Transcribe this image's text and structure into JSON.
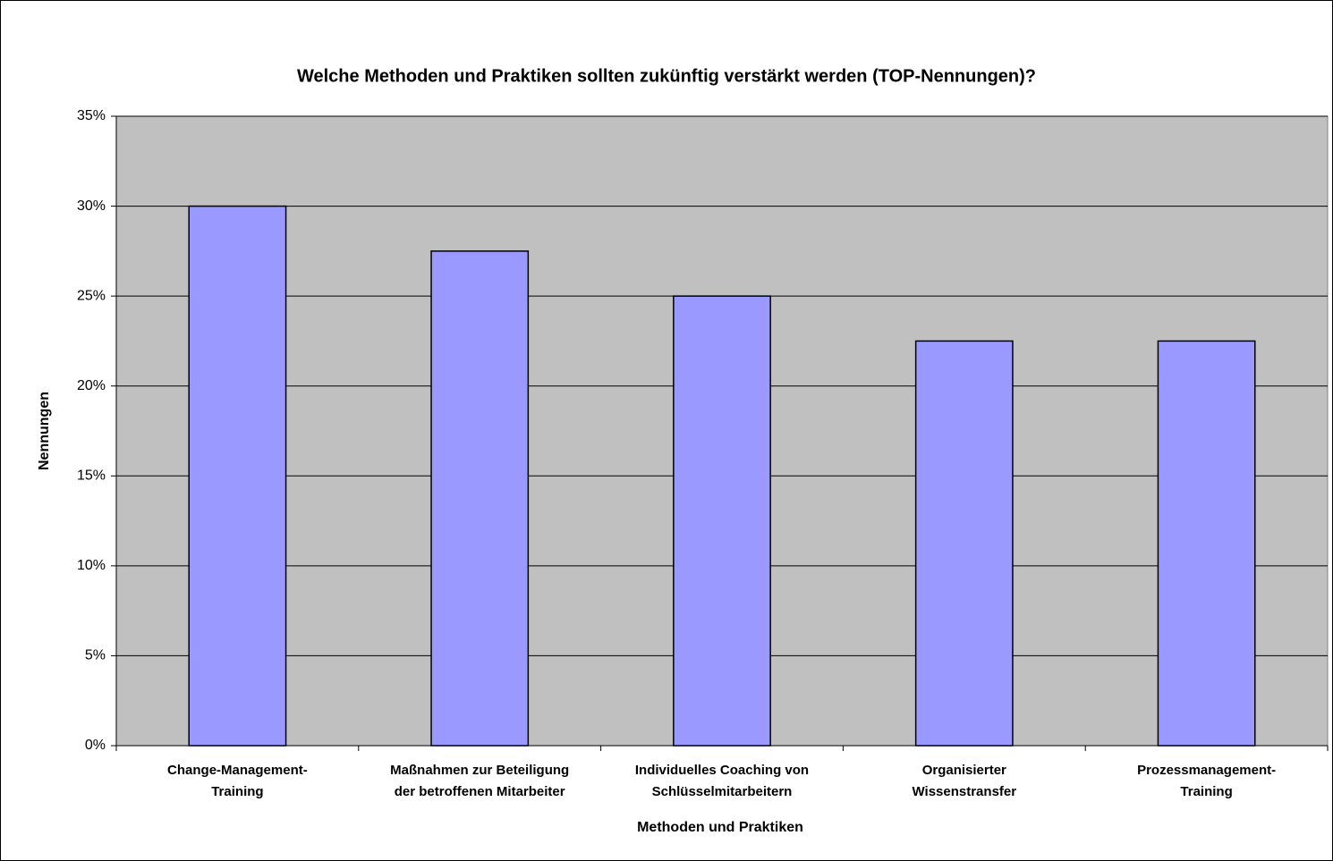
{
  "chart_data": {
    "type": "bar",
    "title": "Welche Methoden und Praktiken sollten zukünftig verstärkt werden (TOP-Nennungen)?",
    "x_label": "Methoden und Praktiken",
    "y_label": "Nennungen",
    "categories": [
      "Change-Management-\nTraining",
      "Maßnahmen zur Beteiligung\nder betroffenen Mitarbeiter",
      "Individuelles Coaching von\nSchlüsselmitarbeitern",
      "Organisierter\nWissenstransfer",
      "Prozessmanagement-\nTraining"
    ],
    "values": [
      30,
      27.5,
      25,
      22.5,
      22.5
    ],
    "color": "#9999ff",
    "ylim": [
      0,
      35
    ],
    "yticks": [
      {
        "value": 0,
        "label": "0%"
      },
      {
        "value": 5,
        "label": "5%"
      },
      {
        "value": 10,
        "label": "10%"
      },
      {
        "value": 15,
        "label": "15%"
      },
      {
        "value": 20,
        "label": "20%"
      },
      {
        "value": 25,
        "label": "25%"
      },
      {
        "value": 30,
        "label": "30%"
      },
      {
        "value": 35,
        "label": "35%"
      }
    ],
    "grid": true
  }
}
